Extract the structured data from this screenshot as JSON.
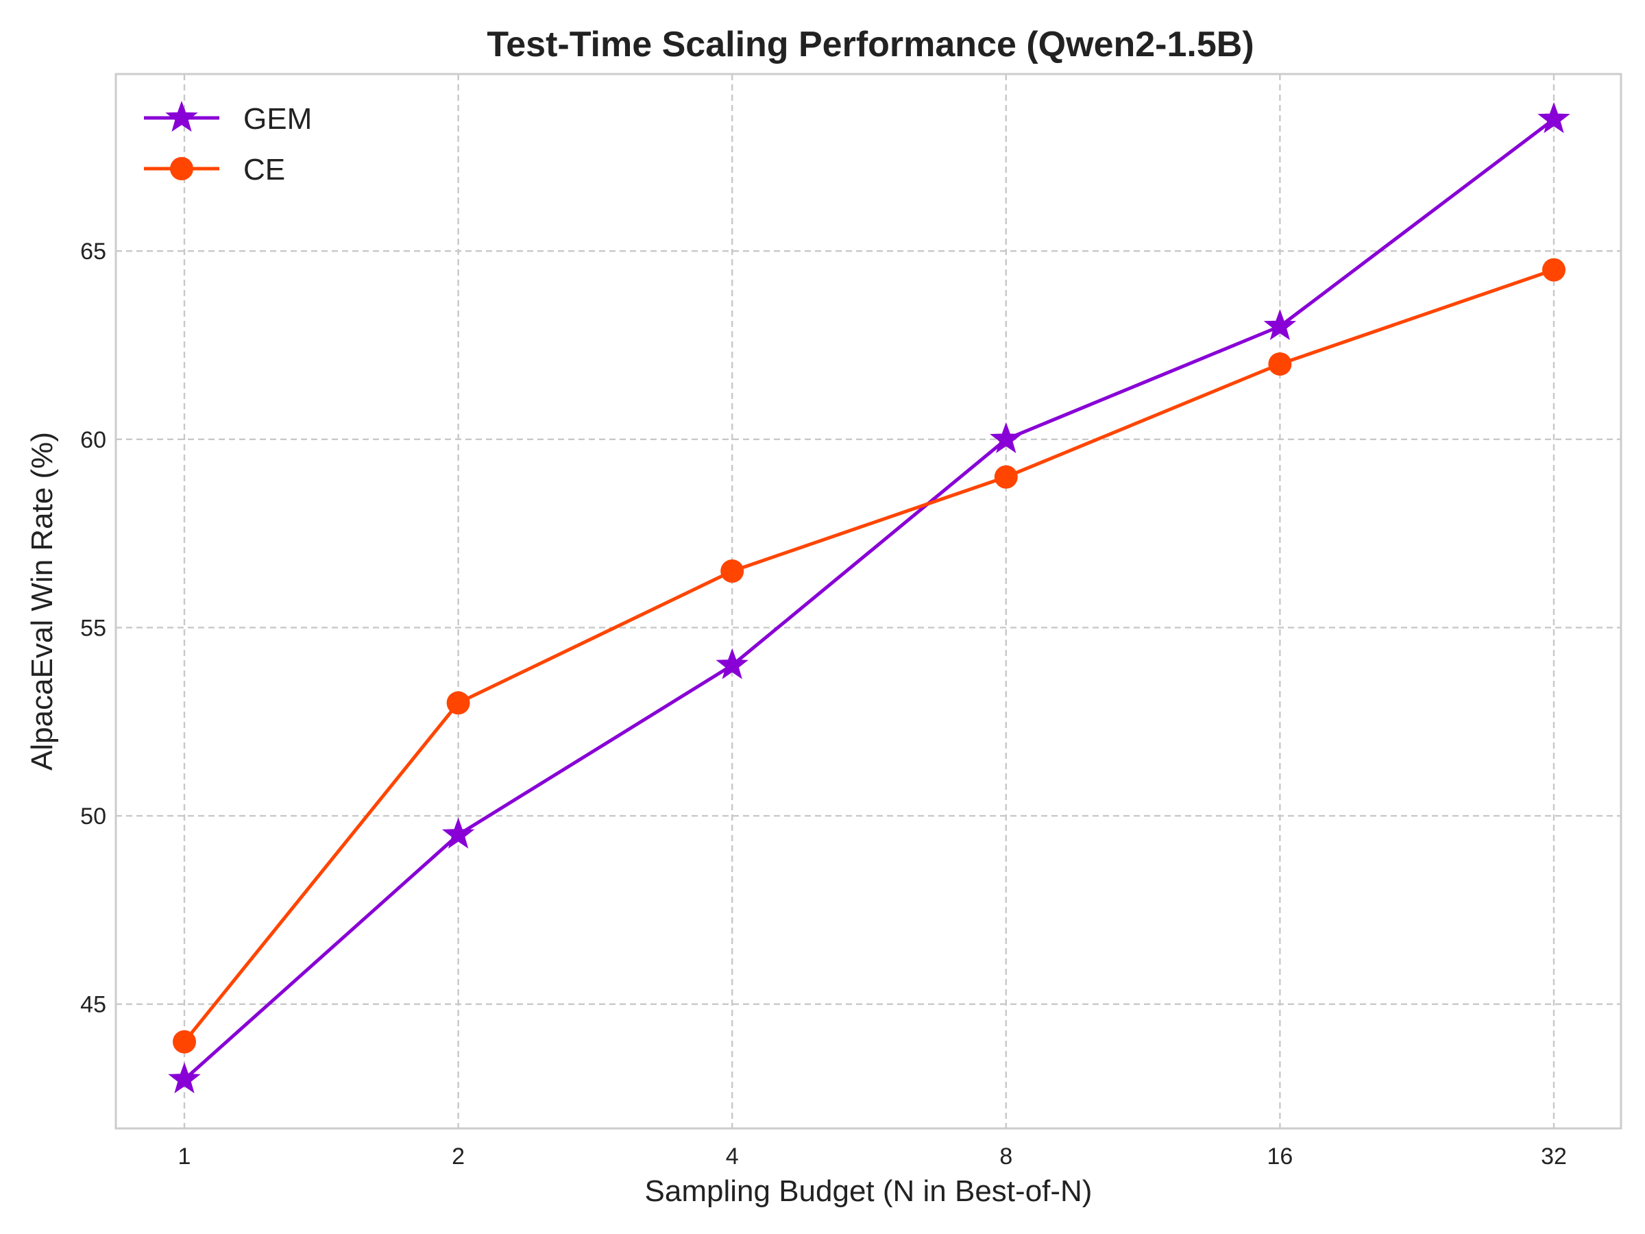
{
  "chart_data": {
    "type": "line",
    "title": "Test-Time Scaling Performance (Qwen2-1.5B)",
    "xlabel": "Sampling Budget (N in Best-of-N)",
    "ylabel": "AlpacaEval Win Rate (%)",
    "categories": [
      "1",
      "2",
      "4",
      "8",
      "16",
      "32"
    ],
    "x_scale": "log2",
    "ylim": [
      41.7,
      69.7
    ],
    "yticks": [
      45,
      50,
      55,
      60,
      65
    ],
    "grid": true,
    "legend_position": "top-left",
    "series": [
      {
        "name": "GEM",
        "color": "#8800d6",
        "marker": "star",
        "values": [
          43.0,
          49.5,
          54.0,
          60.0,
          63.0,
          68.5
        ]
      },
      {
        "name": "CE",
        "color": "#ff4500",
        "marker": "circle",
        "values": [
          44.0,
          53.0,
          56.5,
          59.0,
          62.0,
          64.5
        ]
      }
    ]
  }
}
